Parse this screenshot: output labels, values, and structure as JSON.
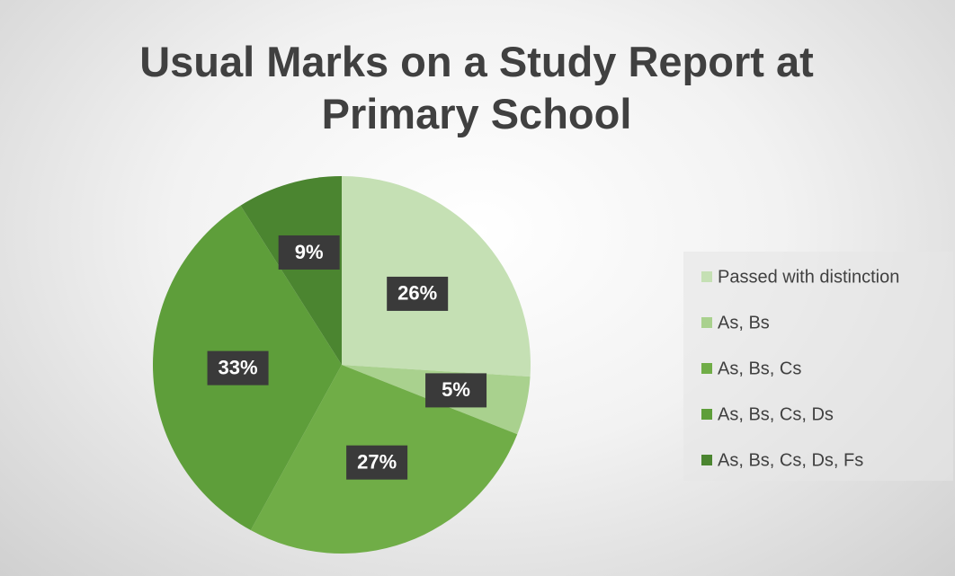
{
  "chart_data": {
    "type": "pie",
    "title": "Usual Marks on a Study Report at Primary School",
    "categories": [
      "Passed with distinction",
      "As, Bs",
      "As, Bs, Cs",
      "As, Bs, Cs, Ds",
      "As, Bs, Cs, Ds, Fs"
    ],
    "values": [
      26,
      5,
      27,
      33,
      9
    ],
    "value_labels": [
      "26%",
      "5%",
      "27%",
      "33%",
      "9%"
    ],
    "colors": [
      "#c5e0b4",
      "#a9d18e",
      "#70ad47",
      "#5e9e3a",
      "#4b8530"
    ],
    "legend": "right"
  }
}
